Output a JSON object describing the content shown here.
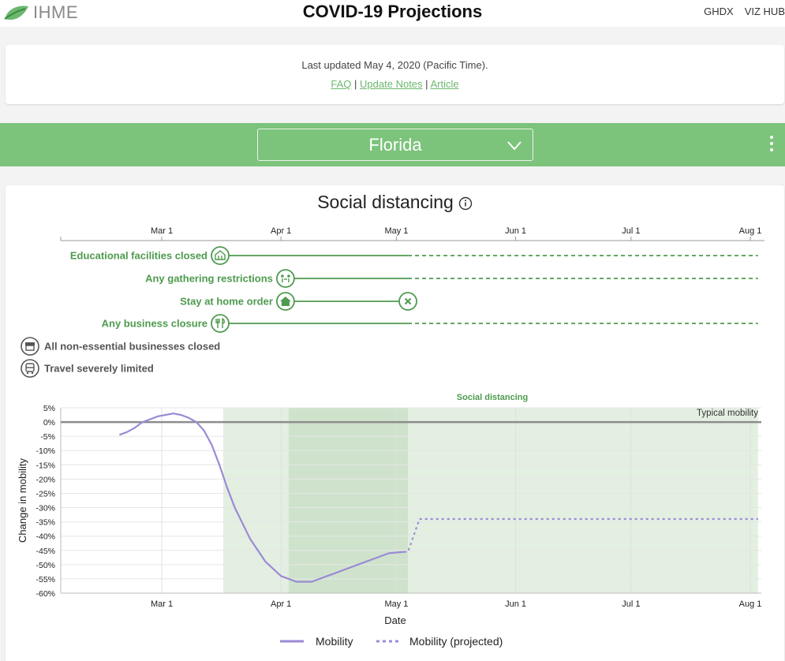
{
  "header": {
    "logo_text": "IHME",
    "title": "COVID-19 Projections",
    "nav": [
      "GHDX",
      "VIZ HUB"
    ]
  },
  "update_info": {
    "text": "Last updated May 4, 2020 (Pacific Time).",
    "links": [
      "FAQ",
      "Update Notes",
      "Article"
    ],
    "separator": "|"
  },
  "location": {
    "selected": "Florida"
  },
  "section": {
    "title": "Social distancing"
  },
  "colors": {
    "brand_green": "#7cc37b",
    "policy_green": "#4e9a4e",
    "mobility_line": "#9b8ad6",
    "baseline": "#8c8c8c"
  },
  "timeline": {
    "ticks": [
      "Mar 1",
      "Apr 1",
      "May 1",
      "Jun 1",
      "Jul 1",
      "Aug 1"
    ],
    "policies": [
      {
        "label": "Educational facilities closed",
        "icon": "school-icon",
        "start": "2020-03-17",
        "end": null,
        "projected_until": "2020-08-03"
      },
      {
        "label": "Any gathering restrictions",
        "icon": "gathering-icon",
        "start": "2020-04-03",
        "end": null,
        "projected_until": "2020-08-03"
      },
      {
        "label": "Stay at home order",
        "icon": "home-icon",
        "start": "2020-04-03",
        "end": "2020-05-04",
        "end_icon": "close-icon"
      },
      {
        "label": "Any business closure",
        "icon": "restaurant-icon",
        "start": "2020-03-17",
        "end": null,
        "projected_until": "2020-08-03"
      }
    ],
    "legend": [
      {
        "label": "All non-essential businesses closed",
        "icon": "store-icon"
      },
      {
        "label": "Travel severely limited",
        "icon": "bus-icon"
      }
    ]
  },
  "chart_data": {
    "type": "line",
    "title": "",
    "xlabel": "Date",
    "ylabel": "Change in mobility",
    "ylim": [
      -60,
      5
    ],
    "yticks": [
      "5%",
      "0%",
      "-5%",
      "-10%",
      "-15%",
      "-20%",
      "-25%",
      "-30%",
      "-35%",
      "-40%",
      "-45%",
      "-50%",
      "-55%",
      "-60%"
    ],
    "xticks": [
      "Mar 1",
      "Apr 1",
      "May 1",
      "Jun 1",
      "Jul 1",
      "Aug 1"
    ],
    "baseline_label": "Typical mobility",
    "band_label": "Social distancing",
    "bands": [
      {
        "start": "2020-03-17",
        "end": "2020-08-03",
        "shade": "light"
      },
      {
        "start": "2020-04-03",
        "end": "2020-05-04",
        "shade": "dark"
      }
    ],
    "series": [
      {
        "name": "Mobility",
        "style": "solid",
        "x": [
          "2020-02-19",
          "2020-02-21",
          "2020-02-23",
          "2020-02-25",
          "2020-02-27",
          "2020-02-29",
          "2020-03-02",
          "2020-03-04",
          "2020-03-06",
          "2020-03-08",
          "2020-03-10",
          "2020-03-12",
          "2020-03-14",
          "2020-03-16",
          "2020-03-18",
          "2020-03-20",
          "2020-03-24",
          "2020-03-28",
          "2020-04-01",
          "2020-04-05",
          "2020-04-09",
          "2020-04-13",
          "2020-04-17",
          "2020-04-21",
          "2020-04-25",
          "2020-04-29",
          "2020-05-03"
        ],
        "y": [
          -4.5,
          -3.5,
          -2,
          0,
          1,
          2,
          2.5,
          3,
          2.5,
          1.5,
          0,
          -3,
          -8,
          -15,
          -23,
          -30,
          -41,
          -49,
          -54,
          -56,
          -56,
          -54,
          -52,
          -50,
          -48,
          -46,
          -45.5
        ]
      },
      {
        "name": "Mobility (projected)",
        "style": "dashed",
        "x": [
          "2020-05-03",
          "2020-05-04",
          "2020-05-07",
          "2020-08-03"
        ],
        "y": [
          -45.5,
          -45.5,
          -34,
          -34
        ]
      }
    ]
  }
}
